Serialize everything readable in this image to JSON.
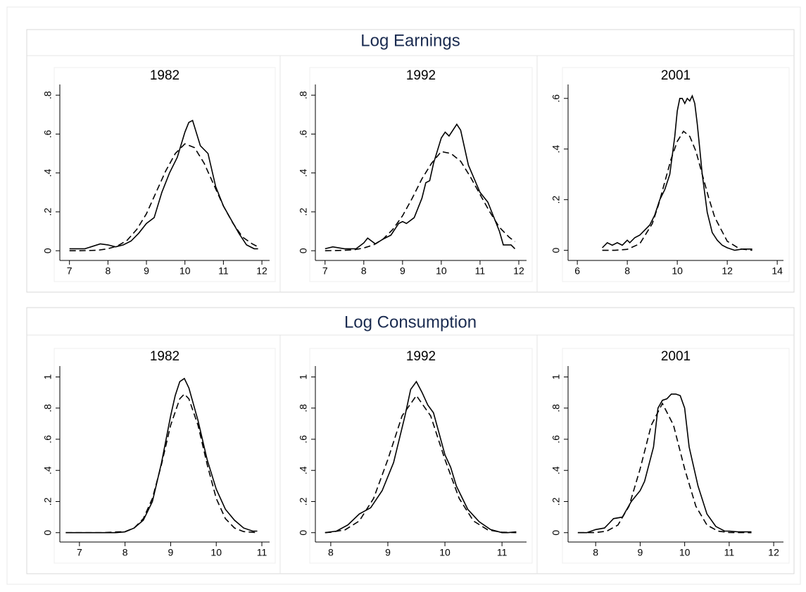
{
  "panel_titles": [
    "Log Earnings",
    "Log Consumption"
  ],
  "chart_data": [
    {
      "type": "line",
      "title": "1982",
      "xlim": [
        6.75,
        12.2
      ],
      "ylim": [
        -0.05,
        0.855
      ],
      "xticks": [
        7,
        8,
        9,
        10,
        11,
        12
      ],
      "yticks": [
        0,
        {
          "value": 0.2,
          "label": ".2"
        },
        {
          "value": 0.4,
          "label": ".4"
        },
        {
          "value": 0.6,
          "label": ".6"
        },
        {
          "value": 0.8,
          "label": ".8"
        }
      ],
      "series": [
        {
          "color": "#000000",
          "style": "solid",
          "x": [
            7,
            7.4,
            7.8,
            8.0,
            8.2,
            8.4,
            8.6,
            8.8,
            9.0,
            9.2,
            9.4,
            9.6,
            9.8,
            10.0,
            10.1,
            10.2,
            10.4,
            10.6,
            10.8,
            11.0,
            11.2,
            11.4,
            11.6,
            11.8,
            11.9
          ],
          "values": [
            0.01,
            0.01,
            0.035,
            0.03,
            0.02,
            0.03,
            0.05,
            0.09,
            0.14,
            0.17,
            0.3,
            0.4,
            0.48,
            0.61,
            0.66,
            0.67,
            0.54,
            0.5,
            0.33,
            0.23,
            0.16,
            0.09,
            0.03,
            0.01,
            0.01
          ]
        },
        {
          "color": "#000000",
          "style": "dashed",
          "x": [
            7,
            7.25,
            7.5,
            7.75,
            8,
            8.25,
            8.5,
            8.75,
            9,
            9.25,
            9.5,
            9.75,
            10,
            10.25,
            10.5,
            10.75,
            11,
            11.25,
            11.5,
            11.75,
            11.9
          ],
          "values": [
            0,
            0,
            0.001,
            0.003,
            0.01,
            0.025,
            0.054,
            0.11,
            0.19,
            0.3,
            0.41,
            0.5,
            0.55,
            0.53,
            0.45,
            0.34,
            0.23,
            0.14,
            0.07,
            0.035,
            0.02
          ]
        }
      ]
    },
    {
      "type": "line",
      "title": "1992",
      "xlim": [
        6.75,
        12.2
      ],
      "ylim": [
        -0.05,
        0.855
      ],
      "xticks": [
        7,
        8,
        9,
        10,
        11,
        12
      ],
      "yticks": [
        0,
        {
          "value": 0.2,
          "label": ".2"
        },
        {
          "value": 0.4,
          "label": ".4"
        },
        {
          "value": 0.6,
          "label": ".6"
        },
        {
          "value": 0.8,
          "label": ".8"
        }
      ],
      "series": [
        {
          "color": "#000000",
          "style": "solid",
          "x": [
            7,
            7.2,
            7.5,
            7.8,
            8.0,
            8.1,
            8.3,
            8.5,
            8.7,
            8.9,
            9.0,
            9.1,
            9.3,
            9.5,
            9.6,
            9.7,
            9.8,
            10.0,
            10.1,
            10.2,
            10.3,
            10.4,
            10.5,
            10.7,
            11.0,
            11.2,
            11.5,
            11.6,
            11.8,
            11.9
          ],
          "values": [
            0.01,
            0.02,
            0.01,
            0.01,
            0.04,
            0.065,
            0.035,
            0.06,
            0.08,
            0.14,
            0.15,
            0.14,
            0.17,
            0.27,
            0.35,
            0.36,
            0.45,
            0.58,
            0.61,
            0.59,
            0.62,
            0.65,
            0.62,
            0.44,
            0.3,
            0.25,
            0.1,
            0.03,
            0.03,
            0.01
          ]
        },
        {
          "color": "#000000",
          "style": "dashed",
          "x": [
            7,
            7.25,
            7.5,
            7.75,
            8,
            8.25,
            8.5,
            8.75,
            9,
            9.25,
            9.5,
            9.75,
            10,
            10.25,
            10.5,
            10.75,
            11,
            11.25,
            11.5,
            11.75,
            11.9
          ],
          "values": [
            0,
            0.001,
            0.002,
            0.005,
            0.014,
            0.03,
            0.06,
            0.11,
            0.18,
            0.27,
            0.37,
            0.45,
            0.51,
            0.5,
            0.46,
            0.38,
            0.29,
            0.2,
            0.12,
            0.07,
            0.047
          ]
        }
      ]
    },
    {
      "type": "line",
      "title": "2001",
      "xlim": [
        5.63,
        14.25
      ],
      "ylim": [
        -0.04,
        0.655
      ],
      "xticks": [
        6,
        8,
        10,
        12,
        14
      ],
      "yticks": [
        0,
        {
          "value": 0.2,
          "label": ".2"
        },
        {
          "value": 0.4,
          "label": ".4"
        },
        {
          "value": 0.6,
          "label": ".6"
        }
      ],
      "series": [
        {
          "color": "#000000",
          "style": "solid",
          "x": [
            7,
            7.2,
            7.4,
            7.6,
            7.8,
            8.0,
            8.1,
            8.3,
            8.5,
            8.7,
            8.9,
            9.1,
            9.3,
            9.5,
            9.7,
            9.9,
            10.0,
            10.1,
            10.2,
            10.3,
            10.4,
            10.5,
            10.6,
            10.7,
            10.8,
            10.9,
            11.0,
            11.2,
            11.4,
            11.6,
            11.8,
            12.0,
            12.3,
            12.6,
            13.0
          ],
          "values": [
            0.01,
            0.03,
            0.02,
            0.03,
            0.02,
            0.04,
            0.03,
            0.05,
            0.06,
            0.08,
            0.1,
            0.14,
            0.2,
            0.24,
            0.3,
            0.45,
            0.55,
            0.6,
            0.6,
            0.58,
            0.6,
            0.59,
            0.61,
            0.58,
            0.5,
            0.4,
            0.3,
            0.15,
            0.07,
            0.04,
            0.02,
            0.01,
            0,
            0.005,
            0.005
          ]
        },
        {
          "color": "#000000",
          "style": "dashed",
          "x": [
            7,
            7.5,
            8,
            8.5,
            9,
            9.25,
            9.5,
            9.75,
            10,
            10.25,
            10.5,
            10.75,
            11,
            11.25,
            11.5,
            12,
            12.5,
            13
          ],
          "values": [
            0,
            0,
            0.004,
            0.026,
            0.105,
            0.18,
            0.27,
            0.36,
            0.43,
            0.47,
            0.45,
            0.39,
            0.3,
            0.21,
            0.13,
            0.036,
            0.006,
            0
          ]
        }
      ]
    },
    {
      "type": "line",
      "title": "1982",
      "xlim": [
        6.57,
        11.17
      ],
      "ylim": [
        -0.06,
        1.07
      ],
      "xticks": [
        7,
        8,
        9,
        10,
        11
      ],
      "yticks": [
        0,
        {
          "value": 0.2,
          "label": ".2"
        },
        {
          "value": 0.4,
          "label": ".4"
        },
        {
          "value": 0.6,
          "label": ".6"
        },
        {
          "value": 0.8,
          "label": ".8"
        },
        1
      ],
      "series": [
        {
          "color": "#000000",
          "style": "solid",
          "x": [
            6.7,
            7,
            7.5,
            7.8,
            8.0,
            8.2,
            8.4,
            8.6,
            8.8,
            9.0,
            9.1,
            9.2,
            9.3,
            9.4,
            9.6,
            9.8,
            10.0,
            10.2,
            10.4,
            10.6,
            10.8,
            10.9
          ],
          "values": [
            0,
            0,
            0,
            0,
            0.005,
            0.03,
            0.08,
            0.2,
            0.45,
            0.75,
            0.88,
            0.97,
            0.99,
            0.93,
            0.72,
            0.47,
            0.28,
            0.15,
            0.08,
            0.03,
            0.01,
            0.01
          ]
        },
        {
          "color": "#000000",
          "style": "dashed",
          "x": [
            6.7,
            7.5,
            8.0,
            8.2,
            8.4,
            8.6,
            8.8,
            9.0,
            9.2,
            9.3,
            9.4,
            9.6,
            9.8,
            10.0,
            10.2,
            10.4,
            10.6,
            10.9
          ],
          "values": [
            0,
            0,
            0.007,
            0.03,
            0.09,
            0.22,
            0.44,
            0.69,
            0.86,
            0.89,
            0.86,
            0.69,
            0.44,
            0.22,
            0.09,
            0.03,
            0.007,
            0
          ]
        }
      ]
    },
    {
      "type": "line",
      "title": "1992",
      "xlim": [
        7.73,
        11.43
      ],
      "ylim": [
        -0.06,
        1.07
      ],
      "xticks": [
        8,
        9,
        10,
        11
      ],
      "yticks": [
        0,
        {
          "value": 0.2,
          "label": ".2"
        },
        {
          "value": 0.4,
          "label": ".4"
        },
        {
          "value": 0.6,
          "label": ".6"
        },
        {
          "value": 0.8,
          "label": ".8"
        },
        1
      ],
      "series": [
        {
          "color": "#000000",
          "style": "solid",
          "x": [
            7.9,
            8.1,
            8.3,
            8.5,
            8.7,
            8.9,
            9.1,
            9.3,
            9.4,
            9.5,
            9.6,
            9.7,
            9.8,
            10.0,
            10.1,
            10.2,
            10.4,
            10.6,
            10.8,
            11.0,
            11.1,
            11.25
          ],
          "values": [
            0,
            0.01,
            0.05,
            0.12,
            0.16,
            0.27,
            0.45,
            0.75,
            0.92,
            0.97,
            0.9,
            0.82,
            0.77,
            0.5,
            0.42,
            0.3,
            0.15,
            0.07,
            0.02,
            0,
            0,
            0.005
          ]
        },
        {
          "color": "#000000",
          "style": "dashed",
          "x": [
            7.9,
            8,
            8.25,
            8.5,
            8.75,
            9,
            9.25,
            9.5,
            9.75,
            10,
            10.25,
            10.5,
            10.75,
            11,
            11.25
          ],
          "values": [
            0,
            0.003,
            0.018,
            0.075,
            0.22,
            0.47,
            0.75,
            0.88,
            0.75,
            0.47,
            0.22,
            0.075,
            0.018,
            0.003,
            0
          ]
        }
      ]
    },
    {
      "type": "line",
      "title": "2001",
      "xlim": [
        7.38,
        12.22
      ],
      "ylim": [
        -0.06,
        1.07
      ],
      "xticks": [
        8,
        9,
        10,
        11,
        12
      ],
      "yticks": [
        0,
        {
          "value": 0.2,
          "label": ".2"
        },
        {
          "value": 0.4,
          "label": ".4"
        },
        {
          "value": 0.6,
          "label": ".6"
        },
        {
          "value": 0.8,
          "label": ".8"
        },
        1
      ],
      "series": [
        {
          "color": "#000000",
          "style": "solid",
          "x": [
            7.6,
            7.8,
            8.0,
            8.2,
            8.3,
            8.4,
            8.6,
            8.8,
            9.0,
            9.1,
            9.3,
            9.4,
            9.5,
            9.6,
            9.7,
            9.8,
            9.9,
            10.0,
            10.1,
            10.3,
            10.5,
            10.7,
            10.9,
            11.0,
            11.2,
            11.5
          ],
          "values": [
            0,
            0,
            0.02,
            0.03,
            0.06,
            0.09,
            0.1,
            0.2,
            0.27,
            0.33,
            0.55,
            0.8,
            0.85,
            0.86,
            0.89,
            0.89,
            0.88,
            0.8,
            0.55,
            0.3,
            0.12,
            0.04,
            0.01,
            0.01,
            0.005,
            0.005
          ]
        },
        {
          "color": "#000000",
          "style": "dashed",
          "x": [
            7.6,
            8,
            8.25,
            8.5,
            8.75,
            9,
            9.25,
            9.5,
            9.75,
            10,
            10.25,
            10.5,
            10.75,
            11,
            11.5
          ],
          "values": [
            0,
            0.001,
            0.01,
            0.049,
            0.17,
            0.41,
            0.69,
            0.83,
            0.69,
            0.41,
            0.17,
            0.049,
            0.01,
            0.001,
            0
          ]
        }
      ]
    }
  ]
}
